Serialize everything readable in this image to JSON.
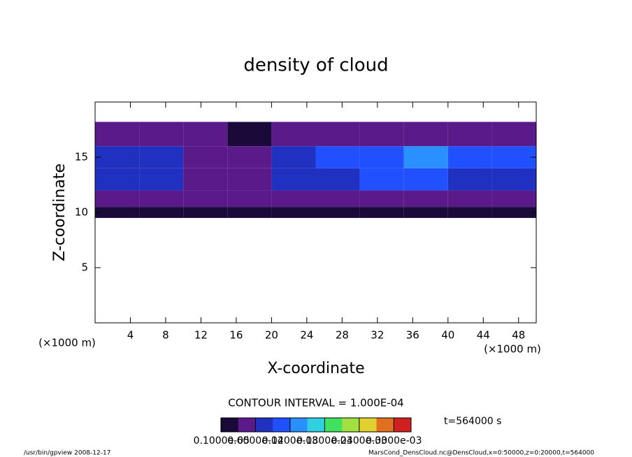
{
  "chart_data": {
    "type": "heatmap",
    "title": "density of cloud",
    "xlabel": "X-coordinate",
    "ylabel": "Z-coordinate",
    "x_unit": "(×1000 m)",
    "y_unit": "(×1000 m)",
    "xlim": [
      0,
      50
    ],
    "ylim": [
      0,
      20
    ],
    "xticks": [
      4,
      8,
      12,
      16,
      20,
      24,
      28,
      32,
      36,
      40,
      44,
      48
    ],
    "yticks": [
      5,
      10,
      15
    ],
    "x_edges": [
      0,
      5,
      10,
      15,
      20,
      25,
      30,
      35,
      40,
      45,
      50
    ],
    "z_edges": [
      9.5,
      10.5,
      12,
      14,
      16,
      18.2
    ],
    "values": [
      [
        1e-05,
        1e-05,
        1e-05,
        1e-05,
        1e-05,
        1e-05,
        1e-05,
        1e-05,
        1e-05,
        1e-05
      ],
      [
        4e-05,
        4e-05,
        4e-05,
        4e-05,
        4e-05,
        4e-05,
        4e-05,
        4e-05,
        4e-05,
        4e-05
      ],
      [
        6e-05,
        6e-05,
        5e-05,
        5e-05,
        6e-05,
        7e-05,
        9e-05,
        0.0001,
        8e-05,
        7e-05
      ],
      [
        8e-05,
        7e-05,
        5e-05,
        4e-05,
        6e-05,
        9e-05,
        0.00011,
        0.00012,
        0.0001,
        9e-05
      ],
      [
        5e-05,
        4e-05,
        3e-05,
        2e-05,
        3e-05,
        4e-05,
        5e-05,
        5e-05,
        3e-05,
        4e-05
      ]
    ],
    "clim": [
      0,
      0.00033
    ],
    "colors": [
      "#1a0a3a",
      "#5a1a8a",
      "#2030c0",
      "#2050ff",
      "#2a90ff",
      "#30d0e0",
      "#40e060",
      "#a0e040",
      "#e0d030",
      "#e07020",
      "#d02020"
    ],
    "cticks": [
      {
        "value": 1e-06,
        "label": "0.1000e-05"
      },
      {
        "value": 6e-05,
        "label": "0.6000e-04"
      },
      {
        "value": 0.00012,
        "label": "0.1200e-03"
      },
      {
        "value": 0.00018,
        "label": "0.1800e-03"
      },
      {
        "value": 0.00024,
        "label": "0.2400e-03"
      },
      {
        "value": 0.0003,
        "label": "0.3000e-03"
      }
    ],
    "contour_interval": "CONTOUR INTERVAL = 1.000E-04",
    "time": "t=564000 s",
    "footer_left": "/usr/bin/gpview   2008-12-17",
    "footer_right": "MarsCond_DensCloud.nc@DensCloud,x=0:50000,z=0:20000,t=564000"
  }
}
